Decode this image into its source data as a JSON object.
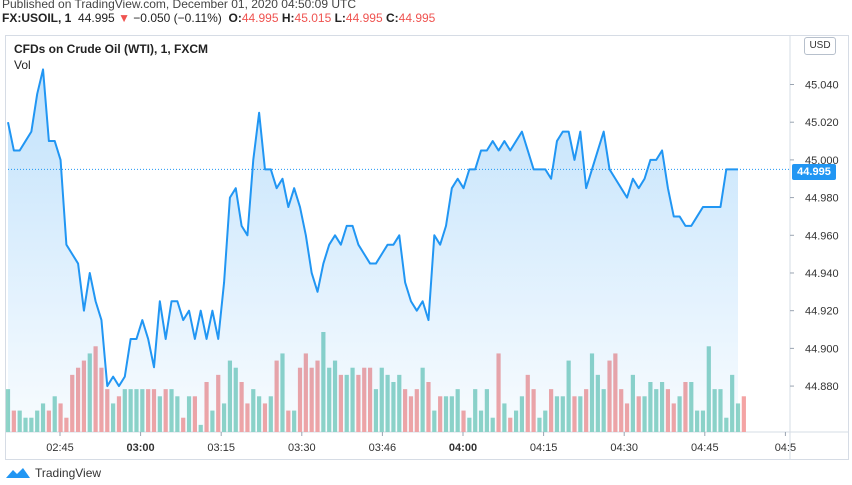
{
  "header": {
    "published": "Published on TradingView.com, December 01, 2020 04:50:09 UTC",
    "symbol": "FX:USOIL, 1",
    "last": "44.995",
    "change_arrow": "▼",
    "change": "−0.050 (−0.11%)",
    "o_label": "O:",
    "o_value": "44.995",
    "h_label": "H:",
    "h_value": "45.015",
    "l_label": "L:",
    "l_value": "44.995",
    "c_label": "C:",
    "c_value": "44.995"
  },
  "legend": {
    "title": "CFDs on Crude Oil (WTI), 1, FXCM",
    "vol": "Vol"
  },
  "currency_button": "USD",
  "last_price_tag": "44.995",
  "footer": {
    "brand": "TradingView"
  },
  "colors": {
    "line": "#2196f3",
    "up_volume": "#8fd4c7",
    "down_volume": "#f4a4a4",
    "price_tag": "#2196f3"
  },
  "chart_data": {
    "type": "area",
    "xlabel": "",
    "ylabel": "",
    "x_ticks": [
      "02:45",
      "03:00",
      "03:15",
      "03:30",
      "03:46",
      "04:00",
      "04:15",
      "04:30",
      "04:45",
      "04:5"
    ],
    "y_ticks": [
      "44.880",
      "44.900",
      "44.920",
      "44.940",
      "44.960",
      "44.980",
      "45.000",
      "45.020",
      "45.040"
    ],
    "ylim": [
      44.862,
      45.053
    ],
    "last_value": 44.995,
    "grid": false,
    "price": [
      45.02,
      45.005,
      45.005,
      45.01,
      45.015,
      45.035,
      45.048,
      45.01,
      45.01,
      45.0,
      44.955,
      44.95,
      44.945,
      44.92,
      44.94,
      44.925,
      44.915,
      44.88,
      44.885,
      44.88,
      44.885,
      44.905,
      44.905,
      44.915,
      44.905,
      44.89,
      44.925,
      44.905,
      44.925,
      44.925,
      44.915,
      44.92,
      44.905,
      44.92,
      44.905,
      44.92,
      44.905,
      44.935,
      44.98,
      44.985,
      44.965,
      44.96,
      45.0,
      45.025,
      44.995,
      44.995,
      44.985,
      44.99,
      44.975,
      44.985,
      44.975,
      44.96,
      44.94,
      44.93,
      44.945,
      44.955,
      44.96,
      44.955,
      44.965,
      44.965,
      44.955,
      44.95,
      44.945,
      44.945,
      44.95,
      44.955,
      44.955,
      44.96,
      44.935,
      44.925,
      44.92,
      44.925,
      44.915,
      44.96,
      44.955,
      44.965,
      44.985,
      44.99,
      44.985,
      44.995,
      44.995,
      45.005,
      45.005,
      45.01,
      45.005,
      45.01,
      45.005,
      45.01,
      45.015,
      45.005,
      44.995,
      44.995,
      44.995,
      44.99,
      45.01,
      45.015,
      45.015,
      45.0,
      45.015,
      44.985,
      44.995,
      45.005,
      45.015,
      44.995,
      44.99,
      44.985,
      44.98,
      44.99,
      44.985,
      44.99,
      45.0,
      45.0,
      45.005,
      44.985,
      44.97,
      44.97,
      44.965,
      44.965,
      44.97,
      44.975,
      44.975,
      44.975,
      44.975,
      44.995,
      44.995,
      44.995
    ],
    "volume": [
      6,
      3,
      3,
      2,
      2,
      3,
      4,
      3,
      5,
      4,
      2,
      8,
      9,
      10,
      11,
      12,
      9,
      6,
      4,
      5,
      6,
      6,
      6,
      6,
      6,
      6,
      5,
      6,
      6,
      5,
      2,
      5,
      5,
      1,
      7,
      3,
      8,
      4,
      10,
      9,
      7,
      4,
      6,
      5,
      4,
      5,
      10,
      11,
      3,
      3,
      9,
      11,
      9,
      10,
      14,
      9,
      10,
      8,
      8,
      9,
      8,
      9,
      9,
      6,
      9,
      8,
      7,
      8,
      6,
      5,
      6,
      9,
      7,
      3,
      5,
      5,
      5,
      6,
      3,
      2,
      6,
      3,
      6,
      2,
      11,
      4,
      2,
      3,
      5,
      8,
      6,
      2,
      3,
      6,
      5,
      5,
      10,
      5,
      5,
      6,
      11,
      8,
      6,
      10,
      11,
      6,
      4,
      8,
      5,
      5,
      7,
      6,
      7,
      6,
      4,
      5,
      7,
      7,
      3,
      3,
      12,
      6,
      6,
      2,
      8,
      4,
      5
    ]
  }
}
